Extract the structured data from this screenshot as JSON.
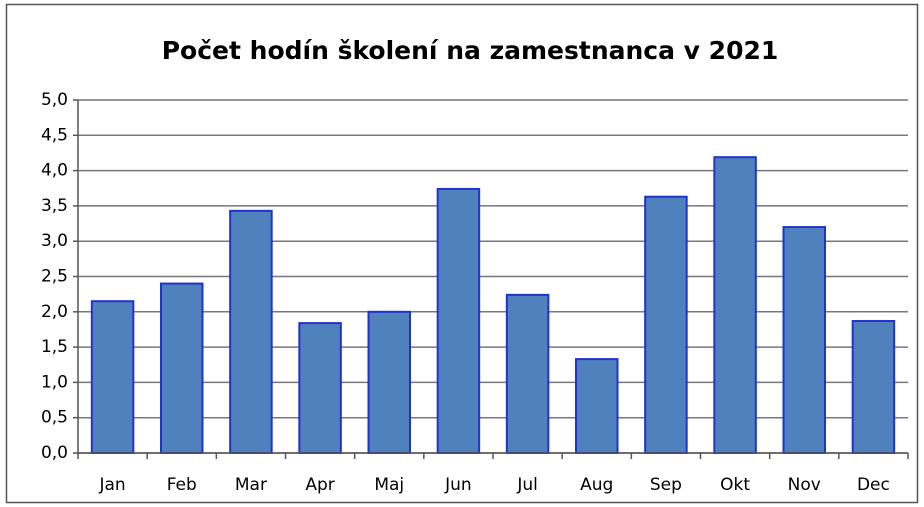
{
  "chart_data": {
    "type": "bar",
    "title": "Počet hodín školení na zamestnanca v 2021",
    "categories": [
      "Jan",
      "Feb",
      "Mar",
      "Apr",
      "Maj",
      "Jun",
      "Jul",
      "Aug",
      "Sep",
      "Okt",
      "Nov",
      "Dec"
    ],
    "values": [
      2.15,
      2.4,
      3.43,
      1.84,
      2.0,
      3.74,
      2.24,
      1.33,
      3.63,
      4.19,
      3.2,
      1.87
    ],
    "color": "#4f81bd",
    "ylim": [
      0,
      5
    ],
    "yticks": [
      {
        "value": 0,
        "label": "0,0"
      },
      {
        "value": 0.5,
        "label": "0,5"
      },
      {
        "value": 1,
        "label": "1,0"
      },
      {
        "value": 1.5,
        "label": "1,5"
      },
      {
        "value": 2,
        "label": "2,0"
      },
      {
        "value": 2.5,
        "label": "2,5"
      },
      {
        "value": 3,
        "label": "3,0"
      },
      {
        "value": 3.5,
        "label": "3,5"
      },
      {
        "value": 4,
        "label": "4,0"
      },
      {
        "value": 4.5,
        "label": "4,5"
      },
      {
        "value": 5,
        "label": "5,0"
      }
    ],
    "grid": true
  }
}
